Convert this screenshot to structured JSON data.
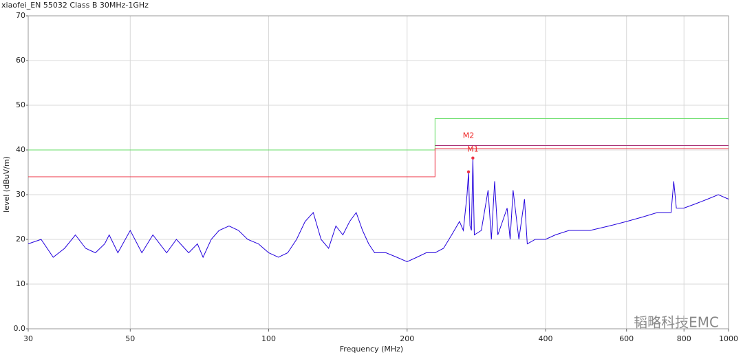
{
  "chart_data": {
    "type": "line",
    "title": "xiaofei_EN 55032 Class B 30MHz-1GHz",
    "x_label": "Frequency (MHz)",
    "y_label": "level (dBuV/m)",
    "xscale": "log",
    "xlim": [
      30,
      1000
    ],
    "ylim": [
      0,
      70
    ],
    "xticks": [
      30,
      50,
      100,
      200,
      400,
      600,
      800,
      1000
    ],
    "yticks": [
      {
        "value": 0,
        "label": "0.0"
      },
      10,
      20,
      30,
      40,
      50,
      60,
      70
    ],
    "grid": true,
    "series": [
      {
        "color": "#66dd66",
        "x": [
          30,
          230,
          230,
          1000
        ],
        "values": [
          40,
          40,
          47,
          47
        ]
      },
      {
        "color": "#ee3344",
        "x": [
          30,
          230,
          230,
          1000
        ],
        "values": [
          34,
          34,
          40.3,
          40.3
        ]
      },
      {
        "color": "#aa3377",
        "x": [
          230,
          1000
        ],
        "values": [
          41,
          41
        ]
      },
      {
        "color": "#2200dd",
        "x": [
          30,
          32,
          34,
          36,
          38,
          40,
          42,
          44,
          45,
          47,
          50,
          53,
          56,
          60,
          63,
          67,
          70,
          72,
          75,
          78,
          82,
          86,
          90,
          95,
          100,
          105,
          110,
          115,
          120,
          125,
          130,
          135,
          140,
          145,
          150,
          155,
          160,
          165,
          170,
          180,
          190,
          200,
          210,
          220,
          230,
          240,
          250,
          260,
          265,
          270,
          272,
          274,
          276,
          278,
          280,
          290,
          300,
          305,
          310,
          315,
          330,
          335,
          340,
          350,
          360,
          365,
          380,
          400,
          420,
          450,
          500,
          550,
          600,
          650,
          700,
          750,
          760,
          770,
          800,
          850,
          900,
          950,
          1000
        ],
        "values": [
          19,
          20,
          16,
          18,
          21,
          18,
          17,
          19,
          21,
          17,
          22,
          17,
          21,
          17,
          20,
          17,
          19,
          16,
          20,
          22,
          23,
          22,
          20,
          19,
          17,
          16,
          17,
          20,
          24,
          26,
          20,
          18,
          23,
          21,
          24,
          26,
          22,
          19,
          17,
          17,
          16,
          15,
          16,
          17,
          17,
          18,
          21,
          24,
          22,
          30,
          35,
          23,
          22,
          38,
          21,
          22,
          31,
          20,
          33,
          21,
          27,
          20,
          31,
          20,
          29,
          19,
          20,
          20,
          21,
          22,
          22,
          23,
          24,
          25,
          26,
          26,
          33,
          27,
          27,
          28,
          29,
          30,
          29
        ]
      }
    ],
    "markers": [
      {
        "label": "M1",
        "x": 278,
        "value": 38.2
      },
      {
        "label": "M2",
        "x": 272,
        "value": 35.1
      }
    ],
    "watermark": "韬略科技EMC"
  }
}
